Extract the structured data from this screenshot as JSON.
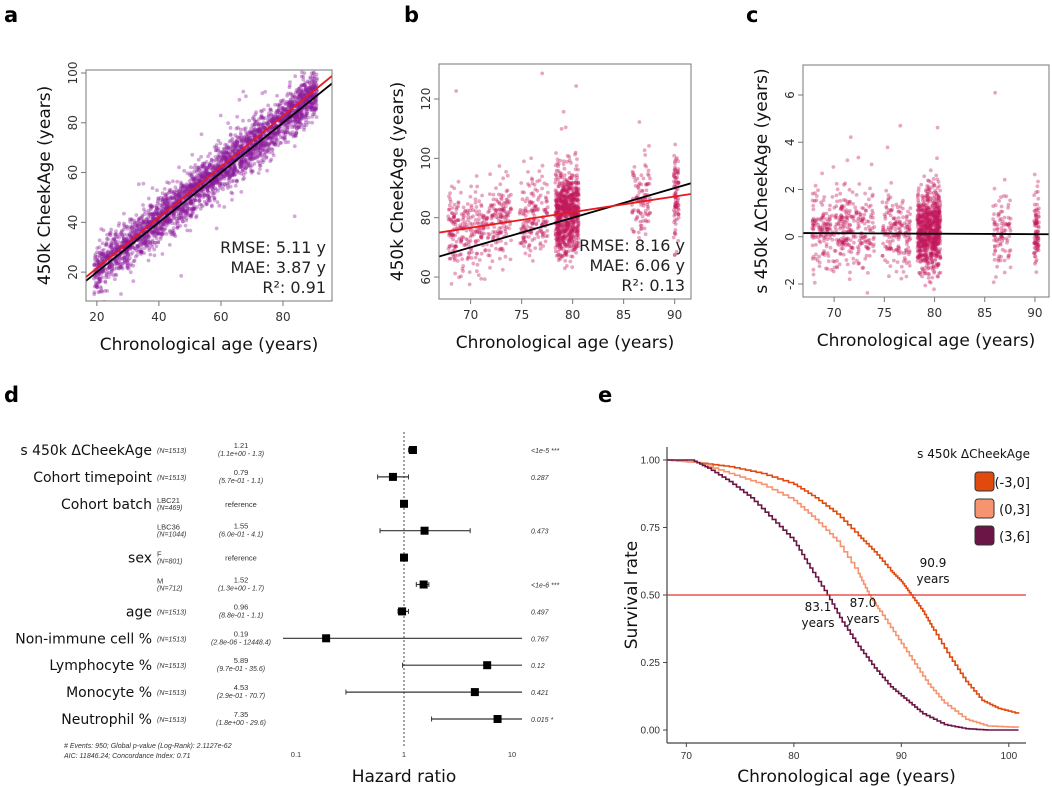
{
  "panel_labels": [
    "a",
    "b",
    "c",
    "d",
    "e"
  ],
  "chart_data": [
    {
      "panel": "a",
      "type": "scatter",
      "xlabel": "Chronological age (years)",
      "ylabel": "450k CheekAge  (years)",
      "xlim": [
        16.5,
        95.8
      ],
      "ylim": [
        8.4,
        101.2
      ],
      "xticks": [
        20,
        40,
        60,
        80
      ],
      "yticks": [
        20,
        40,
        60,
        80,
        100
      ],
      "point_color": "#8B1A9A",
      "lines": [
        {
          "color": "#000000",
          "intercept": 0,
          "slope": 1
        },
        {
          "color": "#E41A1C",
          "intercept": 1.2,
          "slope": 1.019
        }
      ],
      "stats": [
        "RMSE: 5.11 y",
        "MAE: 3.87 y",
        "R²: 0.91"
      ]
    },
    {
      "panel": "b",
      "type": "scatter",
      "xlabel": "Chronological age (years)",
      "ylabel": "450k CheekAge  (years)",
      "xlim": [
        66.9,
        91.6
      ],
      "ylim": [
        52.6,
        131.8
      ],
      "xticks": [
        70,
        75,
        80,
        85,
        90
      ],
      "yticks": [
        60,
        80,
        100,
        120
      ],
      "point_color": "#C2185B",
      "lines": [
        {
          "color": "#000000",
          "intercept": 0,
          "slope": 1
        },
        {
          "color": "#E41A1C",
          "intercept": 39.8,
          "slope": 0.526
        }
      ],
      "stats": [
        "RMSE: 8.16 y",
        "MAE: 6.06 y",
        "R²: 0.13"
      ]
    },
    {
      "panel": "c",
      "type": "scatter",
      "xlabel": "Chronological age (years)",
      "ylabel": "s 450k ΔCheekAge  (years)",
      "xlim": [
        66.9,
        91.4
      ],
      "ylim": [
        -2.55,
        7.27
      ],
      "xticks": [
        70,
        75,
        80,
        85,
        90
      ],
      "yticks": [
        -2,
        0,
        2,
        4,
        6
      ],
      "point_color": "#C2185B",
      "lines": [
        {
          "color": "#000000",
          "intercept": 0.29,
          "slope": -0.002
        }
      ]
    },
    {
      "panel": "d",
      "type": "forest",
      "xlabel": "Hazard ratio",
      "xscale": "log",
      "xlim": [
        0.075,
        12.5
      ],
      "xticks": [
        "0.1",
        "1",
        "10"
      ],
      "reference_line": 1,
      "rows": [
        {
          "label": "s 450k ΔCheekAge",
          "level": "",
          "n": "(N=1513)",
          "hr": 1.21,
          "hr_text": "1.21",
          "ci_text": "(1.1e+00 -     1.3)",
          "lo": 1.1,
          "hi": 1.3,
          "p": "<1e-5 ***"
        },
        {
          "label": "Cohort timepoint",
          "level": "",
          "n": "(N=1513)",
          "hr": 0.79,
          "hr_text": "0.79",
          "ci_text": "(5.7e-01 -     1.1)",
          "lo": 0.57,
          "hi": 1.1,
          "p": "0.287"
        },
        {
          "label": "Cohort batch",
          "level": "LBC21",
          "n": "(N=469)",
          "hr": 1,
          "hr_text": "",
          "ci_text": "reference",
          "lo": null,
          "hi": null,
          "p": ""
        },
        {
          "label": "",
          "level": "LBC36",
          "n": "(N=1044)",
          "hr": 1.55,
          "hr_text": "1.55",
          "ci_text": "(6.0e-01 -     4.1)",
          "lo": 0.6,
          "hi": 4.1,
          "p": "0.473"
        },
        {
          "label": "sex",
          "level": "F",
          "n": "(N=801)",
          "hr": 1,
          "hr_text": "",
          "ci_text": "reference",
          "lo": null,
          "hi": null,
          "p": ""
        },
        {
          "label": "",
          "level": "M",
          "n": "(N=712)",
          "hr": 1.52,
          "hr_text": "1.52",
          "ci_text": "(1.3e+00 -     1.7)",
          "lo": 1.3,
          "hi": 1.7,
          "p": "<1e-6 ***"
        },
        {
          "label": "age",
          "level": "",
          "n": "(N=1513)",
          "hr": 0.96,
          "hr_text": "0.96",
          "ci_text": "(8.8e-01 -     1.1)",
          "lo": 0.88,
          "hi": 1.1,
          "p": "0.497"
        },
        {
          "label": "Non-immune cell %",
          "level": "",
          "n": "(N=1513)",
          "hr": 0.19,
          "hr_text": "0.19",
          "ci_text": "(2.8e-06 - 12448.4)",
          "lo": 2.8e-06,
          "hi": 12448.4,
          "p": "0.767"
        },
        {
          "label": "Lymphocyte %",
          "level": "",
          "n": "(N=1513)",
          "hr": 5.89,
          "hr_text": "5.89",
          "ci_text": "(9.7e-01 -   35.6)",
          "lo": 0.97,
          "hi": 35.6,
          "p": "0.12"
        },
        {
          "label": "Monocyte %",
          "level": "",
          "n": "(N=1513)",
          "hr": 4.53,
          "hr_text": "4.53",
          "ci_text": "(2.9e-01 -   70.7)",
          "lo": 0.29,
          "hi": 70.7,
          "p": "0.421"
        },
        {
          "label": "Neutrophil %",
          "level": "",
          "n": "(N=1513)",
          "hr": 7.35,
          "hr_text": "7.35",
          "ci_text": "(1.8e+00 -   29.6)",
          "lo": 1.8,
          "hi": 29.6,
          "p": "0.015 *"
        }
      ],
      "footnote": [
        "# Events: 950; Global p-value (Log-Rank): 2.1127e-62",
        "AIC: 11846.24; Concordance Index: 0.71"
      ]
    },
    {
      "panel": "e",
      "type": "line",
      "xlabel": "Chronological age (years)",
      "ylabel": "Survival rate",
      "xlim": [
        68.2,
        101.6
      ],
      "ylim": [
        -0.048,
        1.048
      ],
      "xticks": [
        70,
        80,
        90,
        100
      ],
      "yticks": [
        "0.00",
        "0.25",
        "0.50",
        "0.75",
        "1.00"
      ],
      "legend_title": "s 450k ΔCheekAge",
      "legend_position": "top-right",
      "hline": {
        "y": 0.5,
        "color": "#E8302A"
      },
      "series": [
        {
          "name": "(-3,0]",
          "color": "#E04A0F",
          "x": [
            68.2,
            71,
            74,
            77,
            80,
            82,
            84,
            86,
            87.5,
            89,
            90,
            90.9,
            92,
            93,
            94.5,
            96,
            97.5,
            99,
            100.9
          ],
          "y": [
            1,
            0.99,
            0.975,
            0.95,
            0.91,
            0.86,
            0.8,
            0.72,
            0.66,
            0.59,
            0.55,
            0.5,
            0.44,
            0.37,
            0.27,
            0.18,
            0.11,
            0.08,
            0.06
          ]
        },
        {
          "name": "(0,3]",
          "color": "#F79470",
          "x": [
            68.2,
            71,
            74,
            77,
            80,
            82,
            84,
            86,
            87,
            88,
            89.5,
            91,
            92.5,
            94,
            96,
            98,
            100.9
          ],
          "y": [
            1,
            0.99,
            0.95,
            0.91,
            0.85,
            0.78,
            0.7,
            0.58,
            0.5,
            0.44,
            0.35,
            0.26,
            0.17,
            0.1,
            0.04,
            0.015,
            0.01
          ]
        },
        {
          "name": "(3,6]",
          "color": "#6B1446",
          "x": [
            68.2,
            70.5,
            72,
            74,
            76,
            78,
            80,
            81.5,
            83.1,
            84.5,
            86,
            87.5,
            89,
            90.5,
            92,
            94,
            96,
            98,
            100.9
          ],
          "y": [
            1,
            1,
            0.97,
            0.92,
            0.86,
            0.78,
            0.7,
            0.6,
            0.5,
            0.4,
            0.31,
            0.23,
            0.16,
            0.11,
            0.06,
            0.02,
            0.005,
            0,
            0
          ]
        }
      ],
      "annotations": [
        {
          "value": "83.1",
          "unit": "years"
        },
        {
          "value": "87.0",
          "unit": "years"
        },
        {
          "value": "90.9",
          "unit": "years"
        }
      ]
    }
  ]
}
